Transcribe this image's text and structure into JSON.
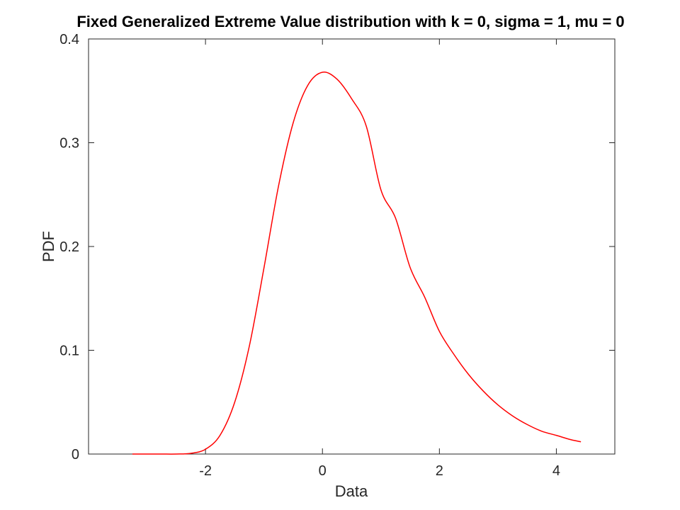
{
  "chart_data": {
    "type": "line",
    "title": "Fixed Generalized Extreme Value distribution with k = 0, sigma = 1, mu = 0",
    "xlabel": "Data",
    "ylabel": "PDF",
    "xlim": [
      -4,
      5
    ],
    "ylim": [
      0,
      0.4
    ],
    "xticks": [
      -2,
      0,
      2,
      4
    ],
    "xtick_labels": [
      "-2",
      "0",
      "2",
      "4"
    ],
    "yticks": [
      0,
      0.1,
      0.2,
      0.3,
      0.4
    ],
    "ytick_labels": [
      "0",
      "0.1",
      "0.2",
      "0.3",
      "0.4"
    ],
    "grid": false,
    "series": [
      {
        "color": "#ff0000",
        "x": [
          -3.25,
          -3.0,
          -2.75,
          -2.5,
          -2.25,
          -2.0,
          -1.75,
          -1.5,
          -1.25,
          -1.0,
          -0.75,
          -0.5,
          -0.25,
          0.0,
          0.25,
          0.5,
          0.75,
          1.0,
          1.25,
          1.5,
          1.75,
          2.0,
          2.25,
          2.5,
          2.75,
          3.0,
          3.25,
          3.5,
          3.75,
          4.0,
          4.25,
          4.42
        ],
        "y": [
          0.0,
          0.0,
          0.0,
          0.0,
          0.0007,
          0.0046,
          0.0182,
          0.05,
          0.1041,
          0.1794,
          0.2586,
          0.3193,
          0.3554,
          0.3679,
          0.3612,
          0.3423,
          0.3159,
          0.2546,
          0.2274,
          0.1797,
          0.151,
          0.1182,
          0.0959,
          0.0766,
          0.0607,
          0.0474,
          0.0368,
          0.0285,
          0.022,
          0.018,
          0.0138,
          0.0118
        ]
      }
    ]
  }
}
